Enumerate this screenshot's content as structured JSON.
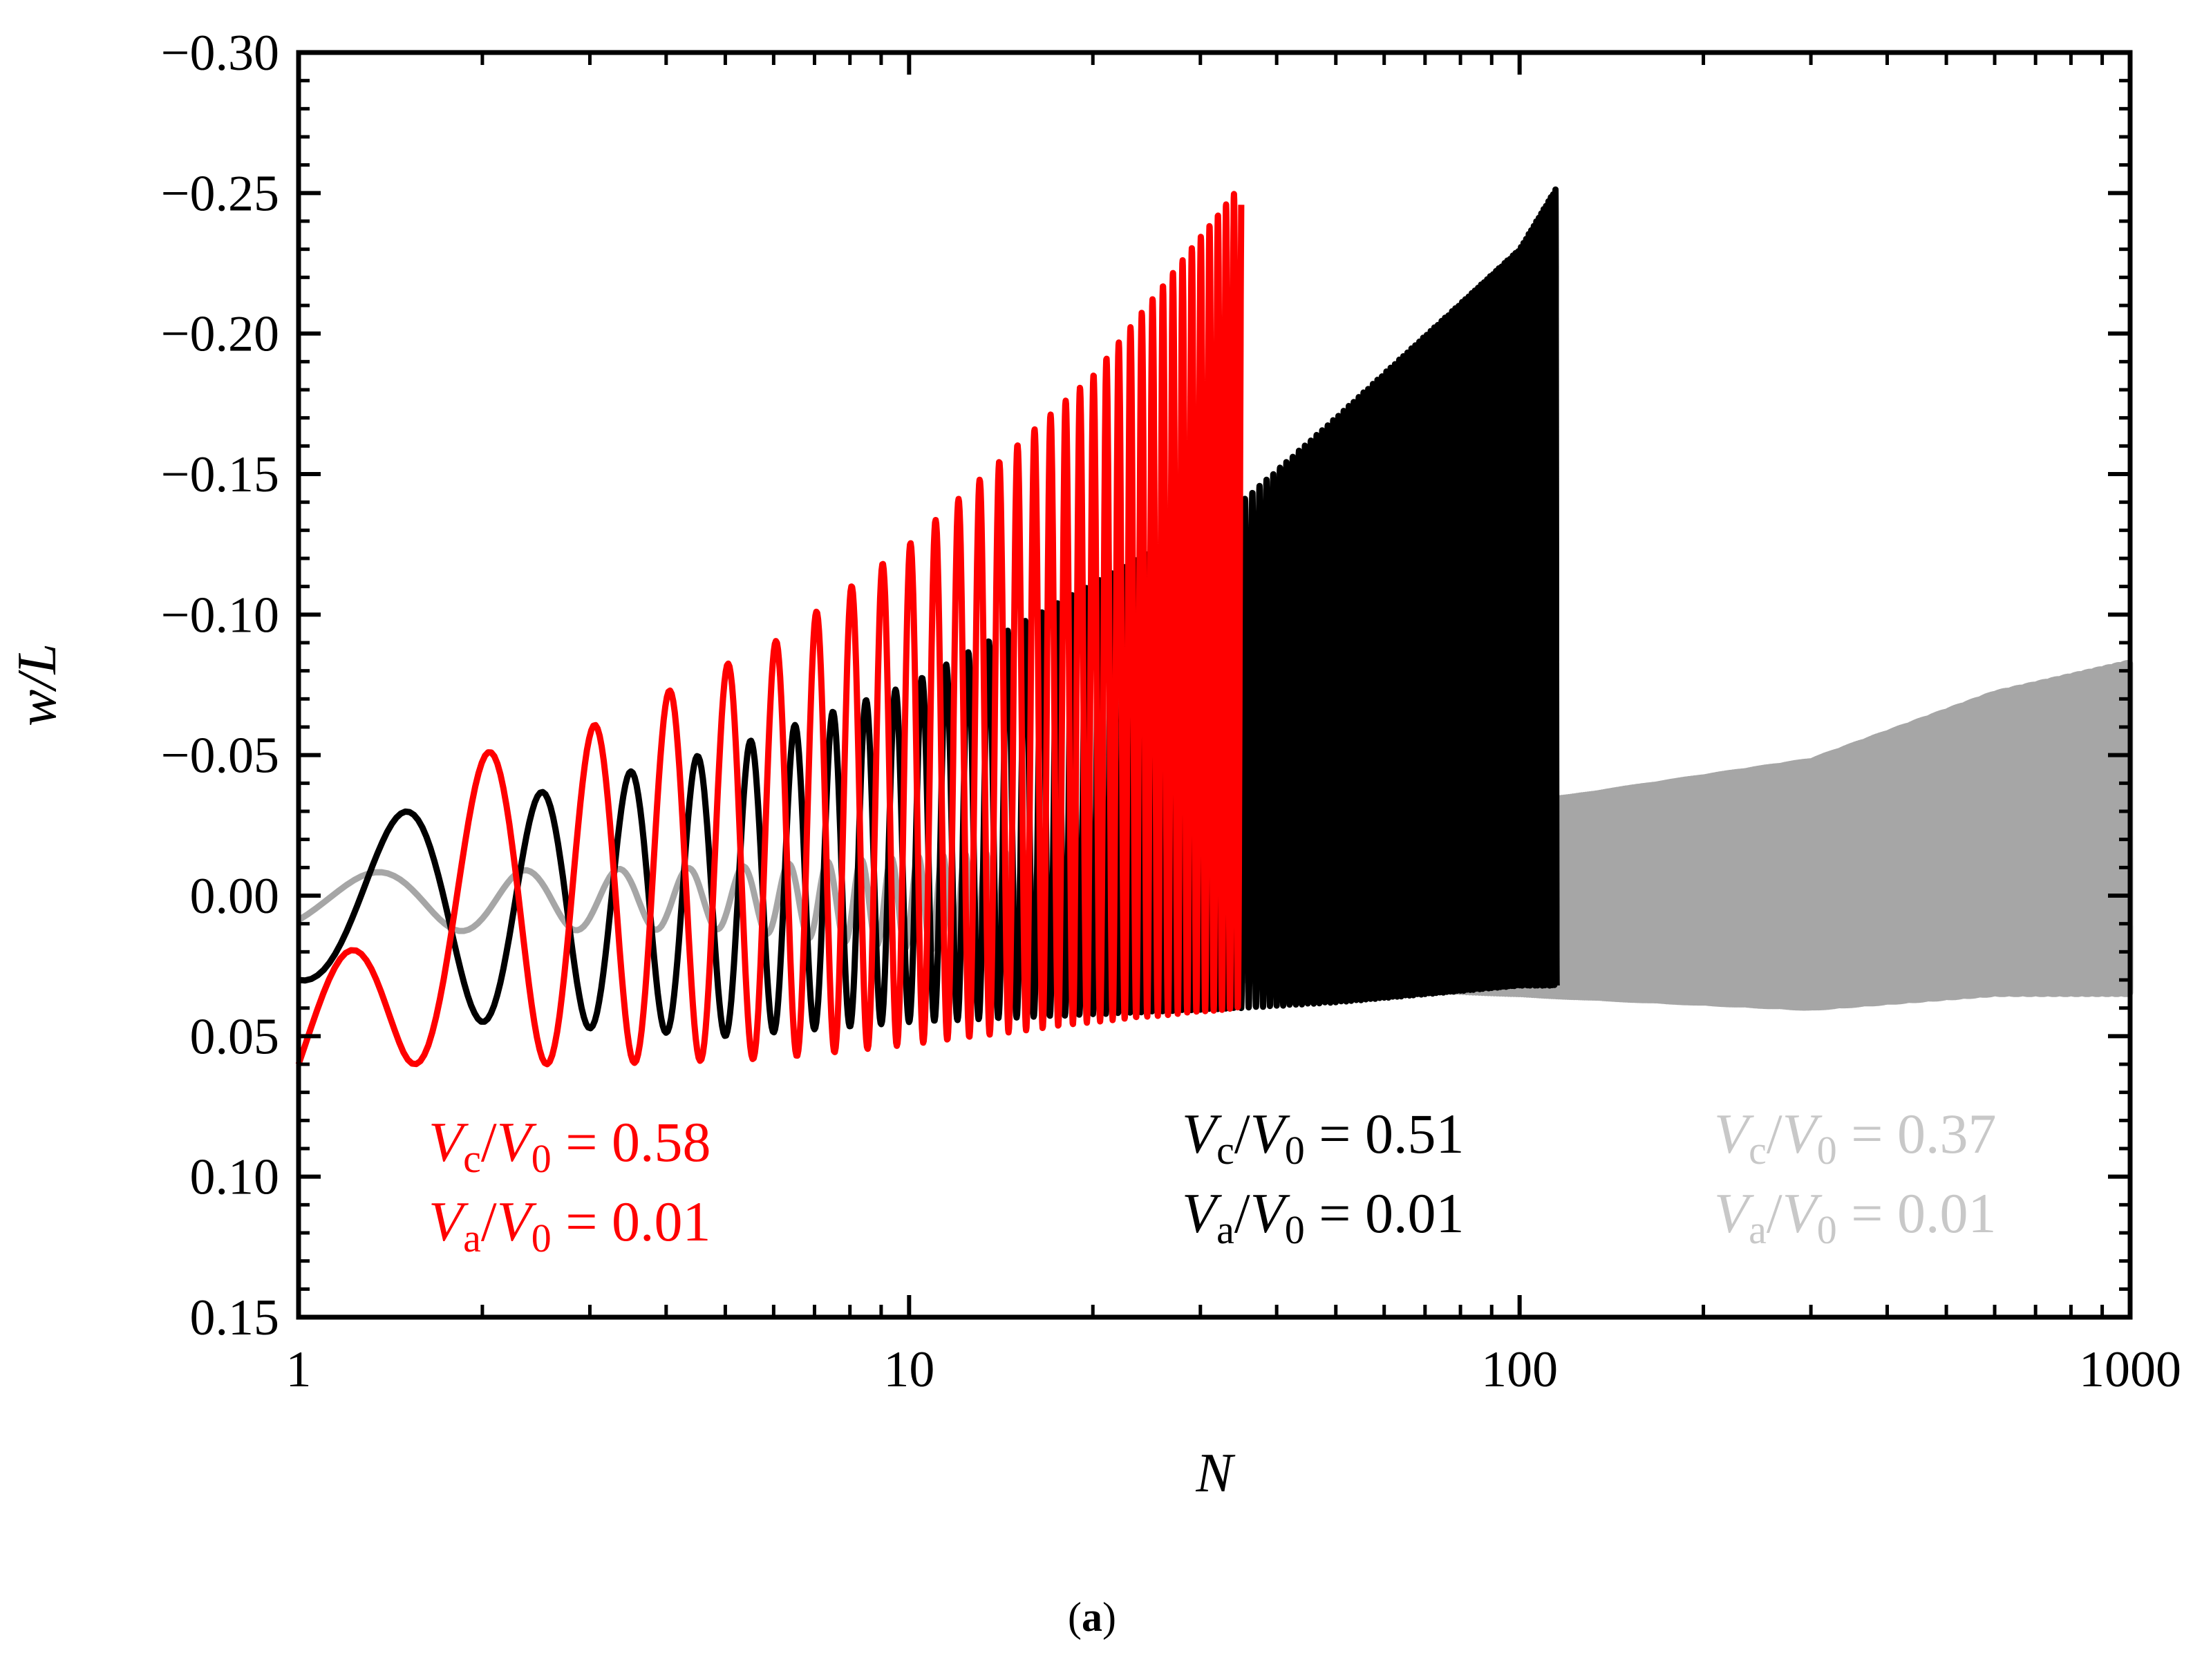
{
  "chart_data": {
    "type": "line",
    "xlabel": "N",
    "ylabel": "w/L",
    "xscale": "log",
    "xlim": [
      1,
      1000
    ],
    "ylim": [
      -0.3,
      0.15
    ],
    "y_inverted": true,
    "grid": false,
    "legend": "none",
    "x_ticks": [
      {
        "value": 1,
        "label": "1"
      },
      {
        "value": 10,
        "label": "10"
      },
      {
        "value": 100,
        "label": "100"
      },
      {
        "value": 1000,
        "label": "1000"
      }
    ],
    "y_ticks": [
      {
        "value": -0.3,
        "label": "−0.30"
      },
      {
        "value": -0.25,
        "label": "−0.25"
      },
      {
        "value": -0.2,
        "label": "−0.20"
      },
      {
        "value": -0.15,
        "label": "−0.15"
      },
      {
        "value": -0.1,
        "label": "−0.10"
      },
      {
        "value": -0.05,
        "label": "−0.05"
      },
      {
        "value": 0.0,
        "label": "0.00"
      },
      {
        "value": 0.05,
        "label": "0.05"
      },
      {
        "value": 0.1,
        "label": "0.10"
      },
      {
        "value": 0.15,
        "label": "0.15"
      }
    ],
    "series": [
      {
        "color": "#A6A6A6",
        "end_N": 1000,
        "envelope": [
          {
            "N": 1,
            "min": -0.008,
            "max": 0.013
          },
          {
            "N": 5,
            "min": -0.01,
            "max": 0.012
          },
          {
            "N": 30,
            "min": -0.02,
            "max": 0.03
          },
          {
            "N": 120,
            "min": -0.035,
            "max": 0.036
          },
          {
            "N": 300,
            "min": -0.048,
            "max": 0.04
          },
          {
            "N": 600,
            "min": -0.072,
            "max": 0.035
          },
          {
            "N": 1000,
            "min": -0.083,
            "max": 0.035
          }
        ],
        "annotation": {
          "vc_v0": "0.37",
          "va_v0": "0.01"
        }
      },
      {
        "color": "#000000",
        "end_N": 115,
        "envelope": [
          {
            "N": 1,
            "min": -0.027,
            "max": 0.03
          },
          {
            "N": 2,
            "min": -0.032,
            "max": 0.045
          },
          {
            "N": 5,
            "min": -0.052,
            "max": 0.05
          },
          {
            "N": 10,
            "min": -0.075,
            "max": 0.045
          },
          {
            "N": 35,
            "min": -0.14,
            "max": 0.04
          },
          {
            "N": 50,
            "min": -0.17,
            "max": 0.038
          },
          {
            "N": 100,
            "min": -0.23,
            "max": 0.032
          },
          {
            "N": 115,
            "min": -0.252,
            "max": 0.032
          }
        ],
        "annotation": {
          "vc_v0": "0.51",
          "va_v0": "0.01"
        }
      },
      {
        "color": "#FF0000",
        "end_N": 35,
        "envelope": [
          {
            "N": 1,
            "min": 0.06,
            "max": 0.062
          },
          {
            "N": 1.45,
            "min": -0.043,
            "max": 0.06
          },
          {
            "N": 3,
            "min": -0.06,
            "max": 0.06
          },
          {
            "N": 6,
            "min": -0.09,
            "max": 0.058
          },
          {
            "N": 10,
            "min": -0.125,
            "max": 0.053
          },
          {
            "N": 20,
            "min": -0.185,
            "max": 0.045
          },
          {
            "N": 35,
            "min": -0.253,
            "max": 0.04
          }
        ],
        "annotation": {
          "vc_v0": "0.58",
          "va_v0": "0.01"
        }
      }
    ]
  },
  "annotations": {
    "red": {
      "l1_V": "V",
      "l1_sub": "c",
      "l1_slash": "/",
      "l1_V0": "V",
      "l1_sub0": "0",
      "l1_val": " = 0.58",
      "l2_V": "V",
      "l2_sub": "a",
      "l2_slash": "/",
      "l2_V0": "V",
      "l2_sub0": "0",
      "l2_val": " = 0.01"
    },
    "black": {
      "l1_V": "V",
      "l1_sub": "c",
      "l1_slash": "/",
      "l1_V0": "V",
      "l1_sub0": "0",
      "l1_val": " = 0.51",
      "l2_V": "V",
      "l2_sub": "a",
      "l2_slash": "/",
      "l2_V0": "V",
      "l2_sub0": "0",
      "l2_val": " = 0.01"
    },
    "gray": {
      "l1_V": "V",
      "l1_sub": "c",
      "l1_slash": "/",
      "l1_V0": "V",
      "l1_sub0": "0",
      "l1_val": " = 0.37",
      "l2_V": "V",
      "l2_sub": "a",
      "l2_slash": "/",
      "l2_V0": "V",
      "l2_sub0": "0",
      "l2_val": " = 0.01"
    }
  },
  "caption": {
    "open": "(",
    "letter": "a",
    "close": ")"
  }
}
